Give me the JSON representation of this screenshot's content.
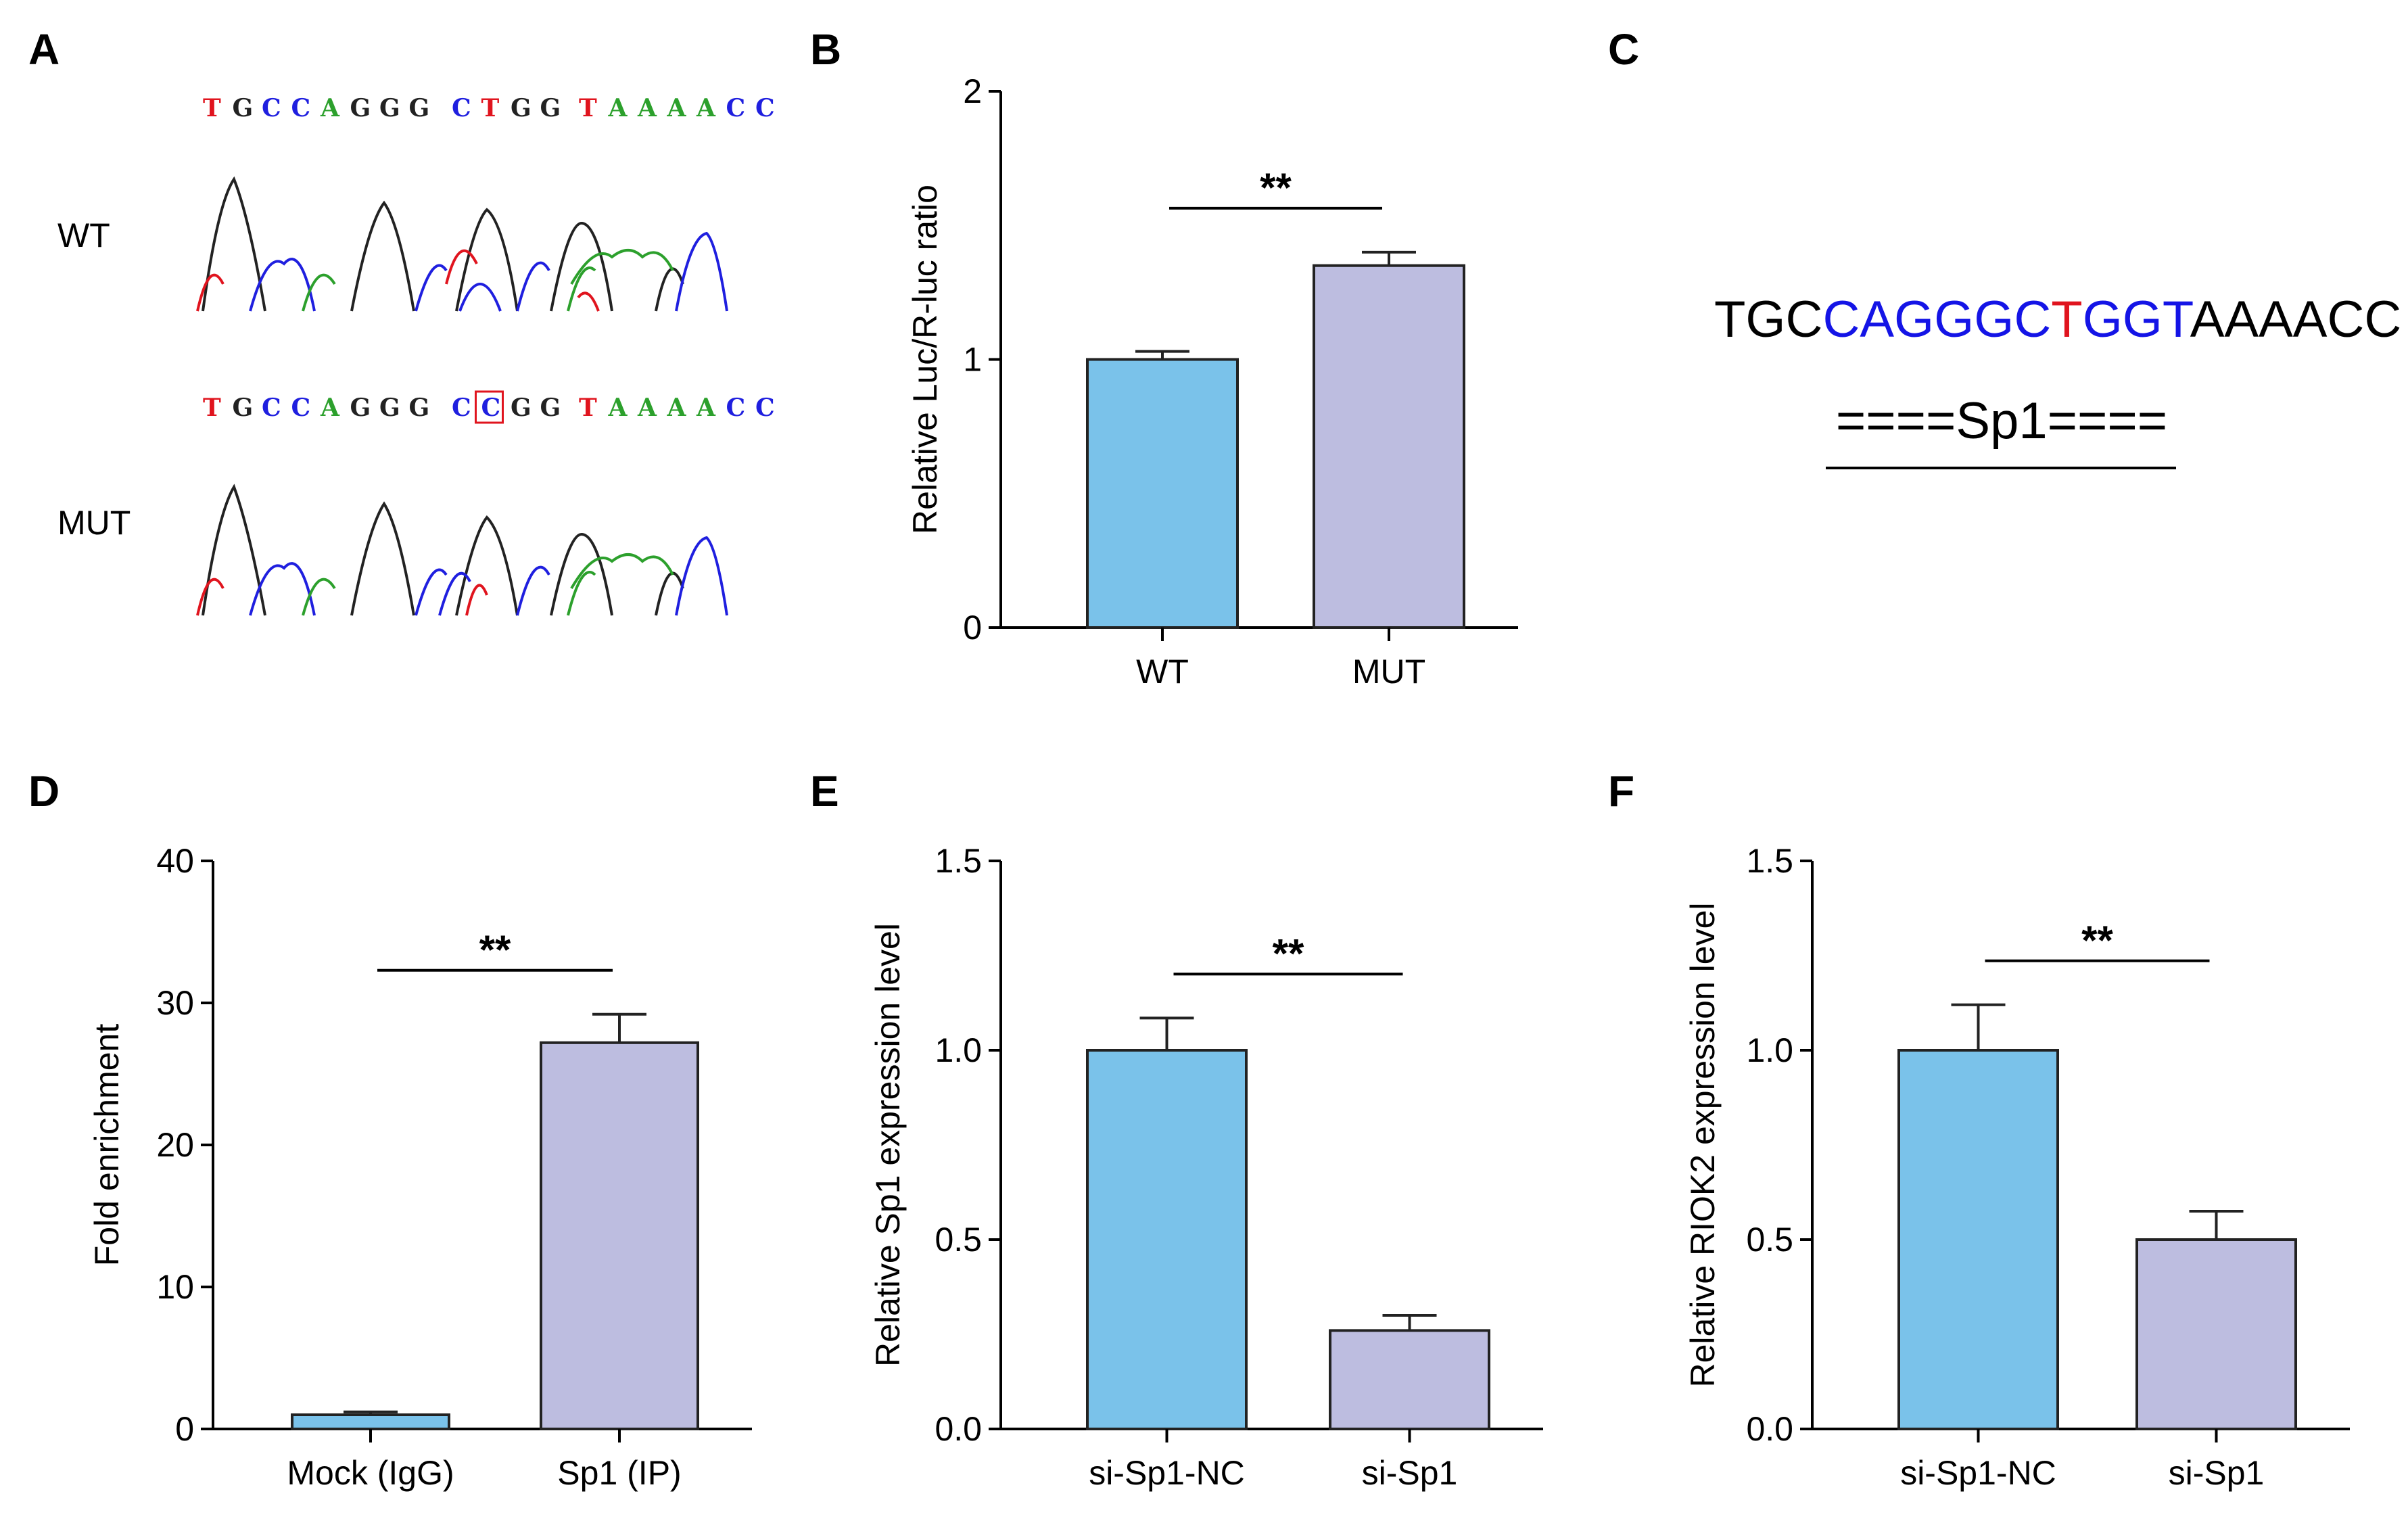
{
  "panels": {
    "A": {
      "letter": "A",
      "rows": [
        {
          "label": "WT",
          "sequence": [
            "T",
            "G",
            "C",
            "C",
            "A",
            "G",
            "G",
            "G",
            "C",
            "T",
            "G",
            "G",
            "T",
            "A",
            "A",
            "A",
            "A",
            "C",
            "C"
          ],
          "boxed_index": null
        },
        {
          "label": "MUT",
          "sequence": [
            "T",
            "G",
            "C",
            "C",
            "A",
            "G",
            "G",
            "G",
            "C",
            "C",
            "G",
            "G",
            "T",
            "A",
            "A",
            "A",
            "A",
            "C",
            "C"
          ],
          "boxed_index": 9
        }
      ],
      "base_colors": {
        "A": "#2ca02c",
        "C": "#1f1fdf",
        "G": "#222222",
        "T": "#e0141e"
      },
      "box_color": "#e0141e"
    },
    "C": {
      "letter": "C",
      "segments": [
        {
          "text": "TGC",
          "color": "#000000"
        },
        {
          "text": "CAGGGC",
          "color": "#1414e6"
        },
        {
          "text": "T",
          "color": "#e0141e"
        },
        {
          "text": "GGT",
          "color": "#1414e6"
        },
        {
          "text": "AAAACC",
          "color": "#000000"
        }
      ],
      "motif_label": "====Sp1===="
    }
  },
  "colors": {
    "bar1": "#7ac2ea",
    "bar2": "#bdbde0",
    "edge": "#222222"
  },
  "chart_data": [
    {
      "id": "B",
      "letter": "B",
      "type": "bar",
      "categories": [
        "WT",
        "MUT"
      ],
      "values": [
        1.0,
        1.35
      ],
      "errors": [
        0.03,
        0.05
      ],
      "ylabel": "Relative Luc/R-luc ratio",
      "ylim": [
        0,
        2
      ],
      "ticks": [
        0,
        1,
        2
      ],
      "tick_labels": [
        "0",
        "1",
        "2"
      ],
      "significance": "**"
    },
    {
      "id": "D",
      "letter": "D",
      "type": "bar",
      "categories": [
        "Mock (IgG)",
        "Sp1 (IP)"
      ],
      "values": [
        1.0,
        27.2
      ],
      "errors": [
        0.2,
        2.0
      ],
      "ylabel": "Fold enrichment",
      "ylim": [
        0,
        40
      ],
      "ticks": [
        0,
        10,
        20,
        30,
        40
      ],
      "tick_labels": [
        "0",
        "10",
        "20",
        "30",
        "40"
      ],
      "significance": "**"
    },
    {
      "id": "E",
      "letter": "E",
      "type": "bar",
      "categories": [
        "si-Sp1-NC",
        "si-Sp1"
      ],
      "values": [
        1.0,
        0.26
      ],
      "errors": [
        0.085,
        0.04
      ],
      "ylabel": "Relative Sp1 expression level",
      "ylim": [
        0,
        1.5
      ],
      "ticks": [
        0,
        0.5,
        1.0,
        1.5
      ],
      "tick_labels": [
        "0.0",
        "0.5",
        "1.0",
        "1.5"
      ],
      "significance": "**"
    },
    {
      "id": "F",
      "letter": "F",
      "type": "bar",
      "categories": [
        "si-Sp1-NC",
        "si-Sp1"
      ],
      "values": [
        1.0,
        0.5
      ],
      "errors": [
        0.12,
        0.075
      ],
      "ylabel": "Relative RIOK2 expression level",
      "ylim": [
        0,
        1.5
      ],
      "ticks": [
        0,
        0.5,
        1.0,
        1.5
      ],
      "tick_labels": [
        "0.0",
        "0.5",
        "1.0",
        "1.5"
      ],
      "significance": "**"
    }
  ]
}
